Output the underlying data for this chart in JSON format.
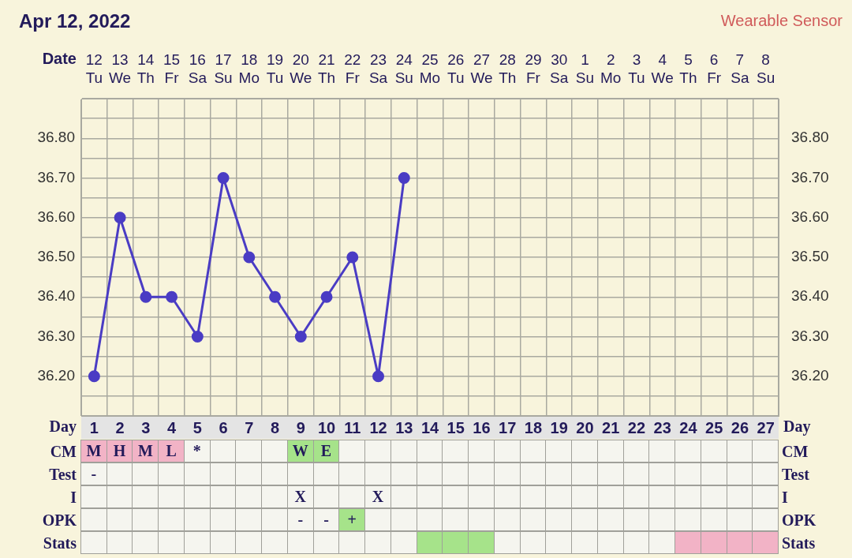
{
  "chart_data": [
    {
      "type": "line",
      "title": "Apr 12, 2022",
      "subtitle": "Wearable Sensor",
      "xlabel": "Date",
      "categories": [
        "12 Tu",
        "13 We",
        "14 Th",
        "15 Fr",
        "16 Sa",
        "17 Su",
        "18 Mo",
        "19 Tu",
        "20 We",
        "21 Th",
        "22 Fr",
        "23 Sa",
        "24 Su",
        "25 Mo",
        "26 Tu",
        "27 We",
        "28 Th",
        "29 Fr",
        "30 Sa",
        "1 Su",
        "2 Mo",
        "3 Tu",
        "4 We",
        "5 Th",
        "6 Fr",
        "7 Sa",
        "8 Su"
      ],
      "values": [
        36.2,
        36.6,
        36.4,
        36.4,
        36.3,
        36.7,
        36.5,
        36.4,
        36.3,
        36.4,
        36.5,
        36.2,
        36.7,
        null,
        null,
        null,
        null,
        null,
        null,
        null,
        null,
        null,
        null,
        null,
        null,
        null,
        null
      ],
      "color": "#4a3cc4",
      "marker": "circle",
      "grid": true,
      "x2label": "Day",
      "x2lim": [
        0.5,
        27.5
      ],
      "x2ticks": [
        1,
        2,
        3,
        4,
        5,
        6,
        7,
        8,
        9,
        10,
        11,
        12,
        13,
        14,
        15,
        16,
        17,
        18,
        19,
        20,
        21,
        22,
        23,
        24,
        25,
        26,
        27
      ],
      "ylim": [
        36.1,
        36.9
      ],
      "yticks": [
        {
          "value": 36.1,
          "label": null
        },
        {
          "value": 36.15,
          "label": null
        },
        {
          "value": 36.2,
          "label": "36.20"
        },
        {
          "value": 36.25,
          "label": null
        },
        {
          "value": 36.3,
          "label": "36.30"
        },
        {
          "value": 36.35,
          "label": null
        },
        {
          "value": 36.4,
          "label": "36.40"
        },
        {
          "value": 36.45,
          "label": null
        },
        {
          "value": 36.5,
          "label": "36.50"
        },
        {
          "value": 36.55,
          "label": null
        },
        {
          "value": 36.6,
          "label": "36.60"
        },
        {
          "value": 36.65,
          "label": null
        },
        {
          "value": 36.7,
          "label": "36.70"
        },
        {
          "value": 36.75,
          "label": null
        },
        {
          "value": 36.8,
          "label": "36.80"
        },
        {
          "value": 36.85,
          "label": null
        },
        {
          "value": 36.9,
          "label": null
        }
      ],
      "y2lim": [
        36.1,
        36.9
      ],
      "y2ticks": [
        {
          "value": 36.1,
          "label": null
        },
        {
          "value": 36.15,
          "label": null
        },
        {
          "value": 36.2,
          "label": "36.20"
        },
        {
          "value": 36.25,
          "label": null
        },
        {
          "value": 36.3,
          "label": "36.30"
        },
        {
          "value": 36.35,
          "label": null
        },
        {
          "value": 36.4,
          "label": "36.40"
        },
        {
          "value": 36.45,
          "label": null
        },
        {
          "value": 36.5,
          "label": "36.50"
        },
        {
          "value": 36.55,
          "label": null
        },
        {
          "value": 36.6,
          "label": "36.60"
        },
        {
          "value": 36.65,
          "label": null
        },
        {
          "value": 36.7,
          "label": "36.70"
        },
        {
          "value": 36.75,
          "label": null
        },
        {
          "value": 36.8,
          "label": "36.80"
        },
        {
          "value": 36.85,
          "label": null
        },
        {
          "value": 36.9,
          "label": null
        }
      ]
    },
    {
      "type": "other",
      "y_categories": [
        "CM",
        "Test",
        "I",
        "OPK",
        "Stats"
      ],
      "y2_categories": [
        "CM",
        "Test",
        "I",
        "OPK",
        "Stats"
      ],
      "cell_labels": [
        [
          "M",
          "H",
          "M",
          "L",
          "*",
          null,
          null,
          null,
          "W",
          "E",
          null,
          null,
          null,
          null,
          null,
          null,
          null,
          null,
          null,
          null,
          null,
          null,
          null,
          null,
          null,
          null,
          null
        ],
        [
          "-",
          null,
          null,
          null,
          null,
          null,
          null,
          null,
          null,
          null,
          null,
          null,
          null,
          null,
          null,
          null,
          null,
          null,
          null,
          null,
          null,
          null,
          null,
          null,
          null,
          null,
          null
        ],
        [
          null,
          null,
          null,
          null,
          null,
          null,
          null,
          null,
          "X",
          null,
          null,
          "X",
          null,
          null,
          null,
          null,
          null,
          null,
          null,
          null,
          null,
          null,
          null,
          null,
          null,
          null,
          null
        ],
        [
          null,
          null,
          null,
          null,
          null,
          null,
          null,
          null,
          "-",
          "-",
          "+",
          null,
          null,
          null,
          null,
          null,
          null,
          null,
          null,
          null,
          null,
          null,
          null,
          null,
          null,
          null,
          null
        ],
        [
          null,
          null,
          null,
          null,
          null,
          null,
          null,
          null,
          null,
          null,
          null,
          null,
          null,
          null,
          null,
          null,
          null,
          null,
          null,
          null,
          null,
          null,
          null,
          null,
          null,
          null,
          null
        ]
      ],
      "colors": [
        [
          "#f2b3c6",
          "#f2b3c6",
          "#f2b3c6",
          "#f2b3c6",
          null,
          null,
          null,
          null,
          "#a6e38a",
          "#a6e38a",
          null,
          null,
          null,
          null,
          null,
          null,
          null,
          null,
          null,
          null,
          null,
          null,
          null,
          null,
          null,
          null,
          null
        ],
        [
          null,
          null,
          null,
          null,
          null,
          null,
          null,
          null,
          null,
          null,
          null,
          null,
          null,
          null,
          null,
          null,
          null,
          null,
          null,
          null,
          null,
          null,
          null,
          null,
          null,
          null,
          null
        ],
        [
          null,
          null,
          null,
          null,
          null,
          null,
          null,
          null,
          null,
          null,
          null,
          null,
          null,
          null,
          null,
          null,
          null,
          null,
          null,
          null,
          null,
          null,
          null,
          null,
          null,
          null,
          null
        ],
        [
          null,
          null,
          null,
          null,
          null,
          null,
          null,
          null,
          null,
          null,
          "#a6e38a",
          null,
          null,
          null,
          null,
          null,
          null,
          null,
          null,
          null,
          null,
          null,
          null,
          null,
          null,
          null,
          null
        ],
        [
          null,
          null,
          null,
          null,
          null,
          null,
          null,
          null,
          null,
          null,
          null,
          null,
          null,
          "#a6e38a",
          "#a6e38a",
          "#a6e38a",
          null,
          null,
          null,
          null,
          null,
          null,
          null,
          "#f2b3c6",
          "#f2b3c6",
          "#f2b3c6",
          "#f2b3c6"
        ]
      ]
    }
  ]
}
